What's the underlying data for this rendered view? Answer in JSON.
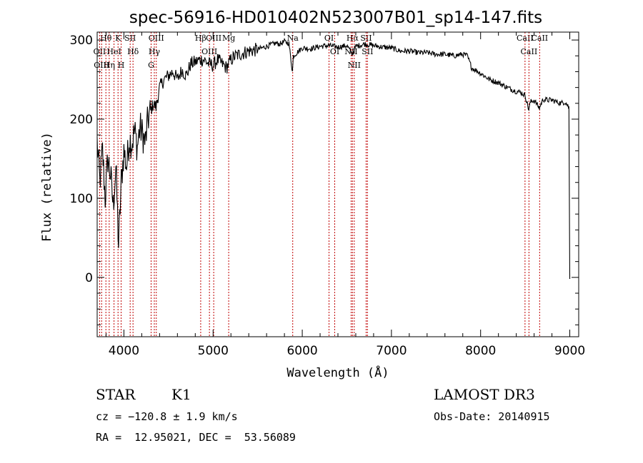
{
  "chart_data": {
    "type": "line",
    "title": "spec-56916-HD010402N523007B01_sp14-147.fits",
    "xlabel": "Wavelength (Å)",
    "ylabel": "Flux (relative)",
    "xlim": [
      3700,
      9100
    ],
    "ylim": [
      -75,
      310
    ],
    "xticks": [
      4000,
      5000,
      6000,
      7000,
      8000,
      9000
    ],
    "yticks": [
      0,
      100,
      200,
      300
    ],
    "series": [
      {
        "name": "spectrum",
        "x": [
          3700,
          3730,
          3760,
          3790,
          3820,
          3850,
          3880,
          3910,
          3940,
          3970,
          4000,
          4030,
          4060,
          4090,
          4120,
          4150,
          4180,
          4210,
          4240,
          4270,
          4300,
          4330,
          4360,
          4400,
          4450,
          4500,
          4550,
          4600,
          4650,
          4700,
          4750,
          4800,
          4850,
          4900,
          4950,
          5000,
          5050,
          5100,
          5150,
          5200,
          5250,
          5300,
          5400,
          5500,
          5600,
          5700,
          5750,
          5800,
          5850,
          5890,
          5900,
          5950,
          6000,
          6100,
          6200,
          6300,
          6400,
          6500,
          6563,
          6600,
          6700,
          6800,
          6900,
          7000,
          7100,
          7200,
          7300,
          7400,
          7500,
          7600,
          7700,
          7800,
          7850,
          7900,
          8000,
          8100,
          8200,
          8300,
          8400,
          8450,
          8500,
          8540,
          8560,
          8600,
          8660,
          8700,
          8750,
          8800,
          8850,
          8900,
          8950,
          8990,
          9000
        ],
        "y": [
          170,
          120,
          160,
          100,
          150,
          130,
          90,
          140,
          40,
          120,
          160,
          140,
          175,
          170,
          185,
          165,
          190,
          180,
          170,
          200,
          210,
          220,
          215,
          240,
          250,
          255,
          260,
          250,
          262,
          255,
          270,
          272,
          275,
          275,
          270,
          268,
          275,
          270,
          265,
          275,
          280,
          282,
          286,
          288,
          292,
          296,
          295,
          298,
          296,
          260,
          280,
          285,
          290,
          289,
          292,
          293,
          291,
          293,
          282,
          292,
          295,
          293,
          291,
          290,
          286,
          286,
          284,
          284,
          282,
          282,
          280,
          282,
          280,
          265,
          258,
          250,
          246,
          240,
          235,
          234,
          230,
          212,
          222,
          224,
          214,
          225,
          224,
          224,
          222,
          220,
          222,
          215,
          -2
        ]
      }
    ],
    "lines": [
      {
        "name": "Hθ",
        "x": 3798
      },
      {
        "name": "OII",
        "x": 3727
      },
      {
        "name": "OIII",
        "x": 3750
      },
      {
        "name": "K",
        "x": 3934
      },
      {
        "name": "HeI",
        "x": 3889
      },
      {
        "name": "Hη",
        "x": 3835
      },
      {
        "name": "H",
        "x": 3969
      },
      {
        "name": "SII",
        "x": 4070
      },
      {
        "name": "Hδ",
        "x": 4102
      },
      {
        "name": "OIII",
        "x": 4363
      },
      {
        "name": "Hγ",
        "x": 4341
      },
      {
        "name": "G",
        "x": 4305
      },
      {
        "name": "OIII",
        "x": 5007
      },
      {
        "name": "OIII",
        "x": 4959
      },
      {
        "name": "Hβ",
        "x": 4861
      },
      {
        "name": "Mg",
        "x": 5175
      },
      {
        "name": "Na",
        "x": 5893
      },
      {
        "name": "OI",
        "x": 6300
      },
      {
        "name": "OI",
        "x": 6364
      },
      {
        "name": "Hα",
        "x": 6563
      },
      {
        "name": "NII",
        "x": 6548
      },
      {
        "name": "NII",
        "x": 6583
      },
      {
        "name": "SII",
        "x": 6716
      },
      {
        "name": "SII",
        "x": 6731
      },
      {
        "name": "CaII",
        "x": 8498
      },
      {
        "name": "CaII",
        "x": 8542
      },
      {
        "name": "CaII",
        "x": 8662
      }
    ]
  },
  "info": {
    "class_label": "STAR",
    "subclass_label": "K1",
    "survey": "LAMOST DR3",
    "cz": "cz = −120.8 ± 1.9 km/s",
    "obs_date": "Obs-Date: 20140915",
    "coords": "RA =  12.95021, DEC =  53.56089"
  }
}
